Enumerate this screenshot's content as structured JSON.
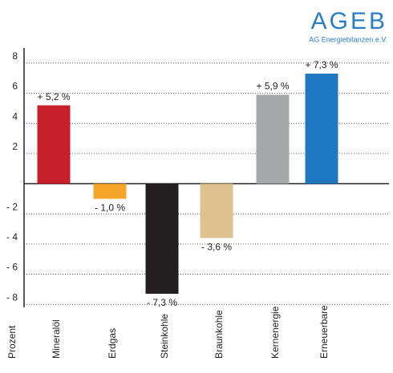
{
  "logo": {
    "title": "AGEB",
    "subtitle": "AG Energiebilanzen e.V."
  },
  "chart_data": {
    "type": "bar",
    "y_label": "Prozent",
    "categories": [
      "Mineralöl",
      "Erdgas",
      "Steinkohle",
      "Braunkohle",
      "Kernenergie",
      "Erneuerbare"
    ],
    "values": [
      5.2,
      -1.0,
      -7.3,
      -3.6,
      5.9,
      7.3
    ],
    "value_labels": [
      "+ 5,2 %",
      "- 1,0 %",
      "- 7,3 %",
      "- 3,6 %",
      "+ 5,9 %",
      "+ 7,3 %"
    ],
    "colors": [
      "#c8202a",
      "#f5a52a",
      "#231f20",
      "#dfc190",
      "#a6a7a9",
      "#1f78c1"
    ],
    "ylim": [
      -8.2,
      9
    ],
    "yticks": [
      8,
      6,
      4,
      2,
      {
        "value": -2,
        "label": "- 2"
      },
      {
        "value": -4,
        "label": "- 4"
      },
      {
        "value": -6,
        "label": "- 6"
      },
      {
        "value": -8,
        "label": "- 8"
      }
    ],
    "grid": true
  }
}
